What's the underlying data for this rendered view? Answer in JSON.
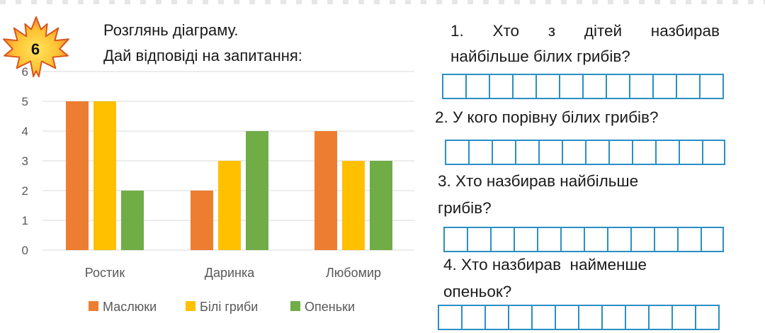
{
  "task": {
    "number": "6",
    "instruction_line1": "Розглянь діаграму.",
    "instruction_line2": "Дай відповіді на запитання:"
  },
  "chart_data": {
    "type": "bar",
    "categories": [
      "Ростик",
      "Даринка",
      "Любомир"
    ],
    "series": [
      {
        "name": "Маслюки",
        "values": [
          5,
          2,
          4
        ],
        "color": "#ED7D31"
      },
      {
        "name": "Білі гриби",
        "values": [
          5,
          3,
          3
        ],
        "color": "#FFC000"
      },
      {
        "name": "Опеньки",
        "values": [
          2,
          4,
          3
        ],
        "color": "#70AD47"
      }
    ],
    "title": "",
    "xlabel": "",
    "ylabel": "",
    "ylim": [
      0,
      6
    ],
    "yticks": [
      0,
      1,
      2,
      3,
      4,
      5,
      6
    ],
    "grid": true,
    "legend": "bottom"
  },
  "questions": [
    {
      "line1": "1. Хто з дітей назбирав",
      "line2": "найбільше білих грибів?"
    },
    {
      "line1": "2. У кого порівну білих грибів?",
      "line2": ""
    },
    {
      "line1": "3. Хто назбирав найбільше",
      "line2": "грибів?"
    },
    {
      "line1": "4. Хто назбирав  найменше",
      "line2": "опеньок?"
    }
  ],
  "colors": {
    "leaf_outer": "#E8772E",
    "leaf_inner": "#FFD23F",
    "grid_border": "#2A8FC4"
  }
}
